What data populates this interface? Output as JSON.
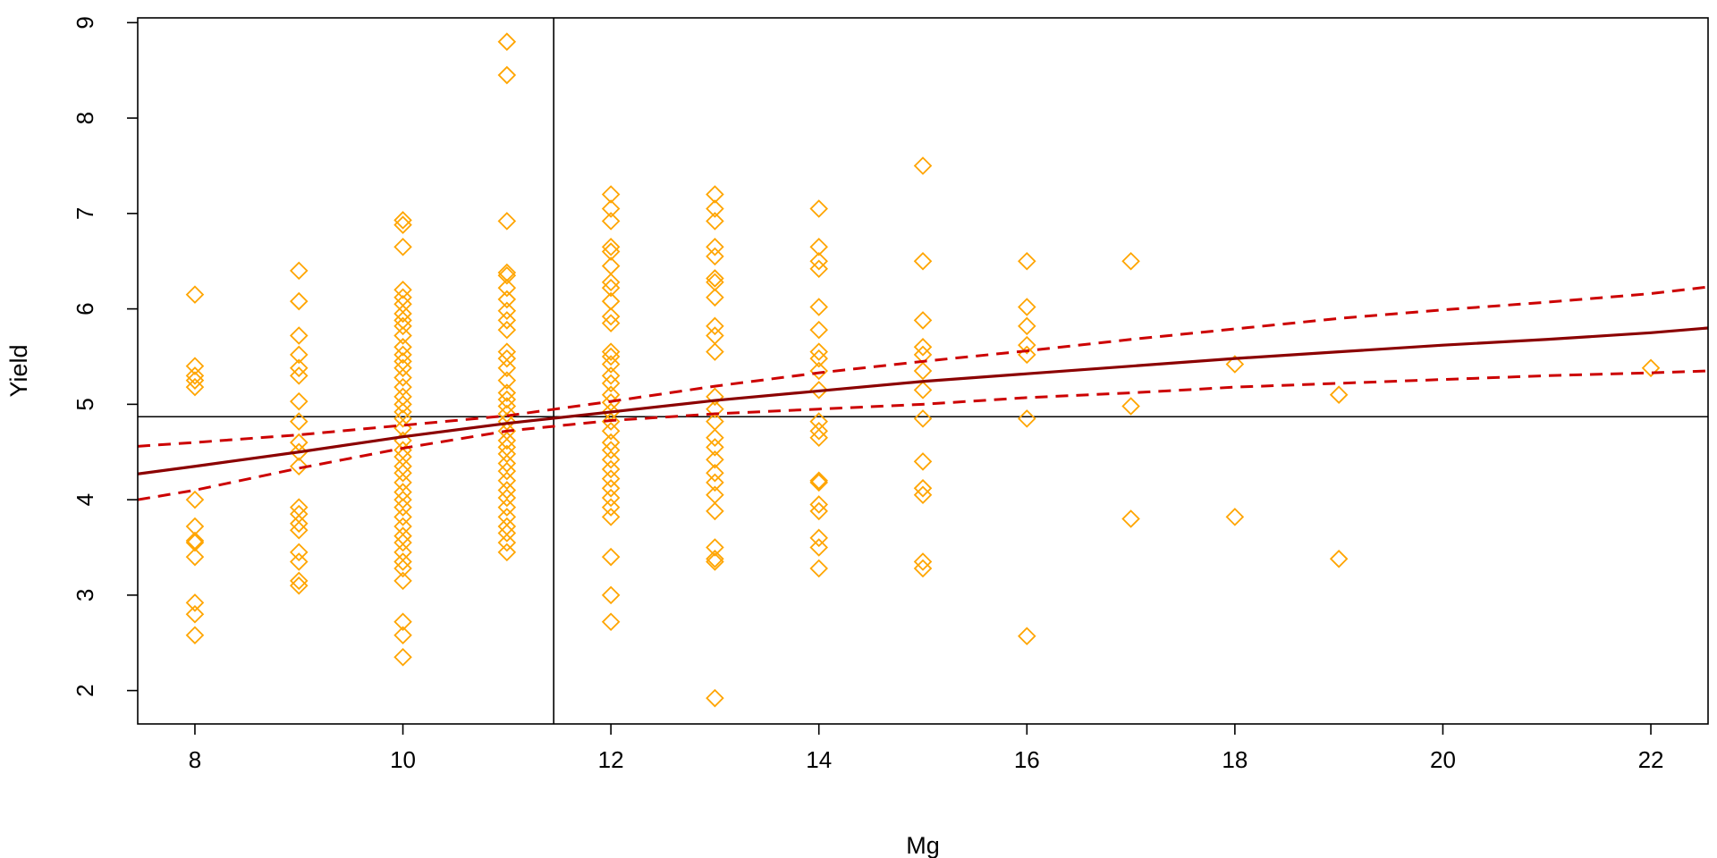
{
  "chart_data": {
    "type": "scatter",
    "title": "",
    "xlabel": "Mg",
    "ylabel": "Yield",
    "xlim": [
      7.45,
      22.55
    ],
    "ylim": [
      1.65,
      9.05
    ],
    "x_ticks": [
      8,
      10,
      12,
      14,
      16,
      18,
      20,
      22
    ],
    "y_ticks": [
      2,
      3,
      4,
      5,
      6,
      7,
      8,
      9
    ],
    "grid": false,
    "legend": "none",
    "reference_lines": {
      "vertical_x": 11.45,
      "horizontal_y": 4.87
    },
    "colors": {
      "points": "#FFA500",
      "fit": "#8B0000",
      "ci": "#CC0000",
      "reference": "#000000",
      "frame": "#000000"
    },
    "points": [
      [
        8,
        6.15
      ],
      [
        8,
        5.4
      ],
      [
        8,
        5.3
      ],
      [
        8,
        5.25
      ],
      [
        8,
        5.18
      ],
      [
        8,
        4.0
      ],
      [
        8,
        3.72
      ],
      [
        8,
        3.57
      ],
      [
        8,
        3.55
      ],
      [
        8,
        3.4
      ],
      [
        8,
        2.92
      ],
      [
        8,
        2.8
      ],
      [
        8,
        2.58
      ],
      [
        9,
        6.4
      ],
      [
        9,
        6.08
      ],
      [
        9,
        5.72
      ],
      [
        9,
        5.52
      ],
      [
        9,
        5.38
      ],
      [
        9,
        5.3
      ],
      [
        9,
        5.03
      ],
      [
        9,
        4.82
      ],
      [
        9,
        4.6
      ],
      [
        9,
        4.5
      ],
      [
        9,
        4.35
      ],
      [
        9,
        3.92
      ],
      [
        9,
        3.85
      ],
      [
        9,
        3.75
      ],
      [
        9,
        3.68
      ],
      [
        9,
        3.45
      ],
      [
        9,
        3.35
      ],
      [
        9,
        3.15
      ],
      [
        9,
        3.1
      ],
      [
        10,
        6.93
      ],
      [
        10,
        6.88
      ],
      [
        10,
        6.65
      ],
      [
        10,
        6.2
      ],
      [
        10,
        6.12
      ],
      [
        10,
        6.05
      ],
      [
        10,
        5.95
      ],
      [
        10,
        5.88
      ],
      [
        10,
        5.82
      ],
      [
        10,
        5.72
      ],
      [
        10,
        5.6
      ],
      [
        10,
        5.52
      ],
      [
        10,
        5.45
      ],
      [
        10,
        5.38
      ],
      [
        10,
        5.28
      ],
      [
        10,
        5.18
      ],
      [
        10,
        5.08
      ],
      [
        10,
        5.0
      ],
      [
        10,
        4.92
      ],
      [
        10,
        4.85
      ],
      [
        10,
        4.75
      ],
      [
        10,
        4.62
      ],
      [
        10,
        4.52
      ],
      [
        10,
        4.45
      ],
      [
        10,
        4.35
      ],
      [
        10,
        4.28
      ],
      [
        10,
        4.18
      ],
      [
        10,
        4.08
      ],
      [
        10,
        4.0
      ],
      [
        10,
        3.92
      ],
      [
        10,
        3.82
      ],
      [
        10,
        3.72
      ],
      [
        10,
        3.62
      ],
      [
        10,
        3.55
      ],
      [
        10,
        3.45
      ],
      [
        10,
        3.35
      ],
      [
        10,
        3.28
      ],
      [
        10,
        3.15
      ],
      [
        10,
        2.72
      ],
      [
        10,
        2.58
      ],
      [
        10,
        2.35
      ],
      [
        11,
        8.8
      ],
      [
        11,
        8.45
      ],
      [
        11,
        6.92
      ],
      [
        11,
        6.38
      ],
      [
        11,
        6.35
      ],
      [
        11,
        6.22
      ],
      [
        11,
        6.1
      ],
      [
        11,
        5.98
      ],
      [
        11,
        5.88
      ],
      [
        11,
        5.78
      ],
      [
        11,
        5.55
      ],
      [
        11,
        5.48
      ],
      [
        11,
        5.38
      ],
      [
        11,
        5.25
      ],
      [
        11,
        5.12
      ],
      [
        11,
        5.05
      ],
      [
        11,
        4.98
      ],
      [
        11,
        4.9
      ],
      [
        11,
        4.82
      ],
      [
        11,
        4.72
      ],
      [
        11,
        4.62
      ],
      [
        11,
        4.55
      ],
      [
        11,
        4.48
      ],
      [
        11,
        4.38
      ],
      [
        11,
        4.3
      ],
      [
        11,
        4.2
      ],
      [
        11,
        4.1
      ],
      [
        11,
        4.02
      ],
      [
        11,
        3.92
      ],
      [
        11,
        3.82
      ],
      [
        11,
        3.72
      ],
      [
        11,
        3.65
      ],
      [
        11,
        3.55
      ],
      [
        11,
        3.45
      ],
      [
        12,
        7.2
      ],
      [
        12,
        7.05
      ],
      [
        12,
        6.92
      ],
      [
        12,
        6.65
      ],
      [
        12,
        6.6
      ],
      [
        12,
        6.45
      ],
      [
        12,
        6.28
      ],
      [
        12,
        6.22
      ],
      [
        12,
        6.08
      ],
      [
        12,
        5.92
      ],
      [
        12,
        5.85
      ],
      [
        12,
        5.55
      ],
      [
        12,
        5.5
      ],
      [
        12,
        5.42
      ],
      [
        12,
        5.3
      ],
      [
        12,
        5.22
      ],
      [
        12,
        5.1
      ],
      [
        12,
        5.02
      ],
      [
        12,
        4.92
      ],
      [
        12,
        4.82
      ],
      [
        12,
        4.72
      ],
      [
        12,
        4.6
      ],
      [
        12,
        4.52
      ],
      [
        12,
        4.42
      ],
      [
        12,
        4.32
      ],
      [
        12,
        4.22
      ],
      [
        12,
        4.12
      ],
      [
        12,
        4.02
      ],
      [
        12,
        3.92
      ],
      [
        12,
        3.82
      ],
      [
        12,
        3.4
      ],
      [
        12,
        3.0
      ],
      [
        12,
        2.72
      ],
      [
        13,
        7.2
      ],
      [
        13,
        7.05
      ],
      [
        13,
        6.92
      ],
      [
        13,
        6.65
      ],
      [
        13,
        6.55
      ],
      [
        13,
        6.32
      ],
      [
        13,
        6.28
      ],
      [
        13,
        6.12
      ],
      [
        13,
        5.82
      ],
      [
        13,
        5.72
      ],
      [
        13,
        5.55
      ],
      [
        13,
        5.08
      ],
      [
        13,
        4.95
      ],
      [
        13,
        4.82
      ],
      [
        13,
        4.65
      ],
      [
        13,
        4.55
      ],
      [
        13,
        4.42
      ],
      [
        13,
        4.28
      ],
      [
        13,
        4.18
      ],
      [
        13,
        4.05
      ],
      [
        13,
        3.88
      ],
      [
        13,
        3.5
      ],
      [
        13,
        3.38
      ],
      [
        13,
        3.35
      ],
      [
        13,
        1.92
      ],
      [
        14,
        7.05
      ],
      [
        14,
        6.65
      ],
      [
        14,
        6.5
      ],
      [
        14,
        6.42
      ],
      [
        14,
        6.02
      ],
      [
        14,
        5.78
      ],
      [
        14,
        5.55
      ],
      [
        14,
        5.48
      ],
      [
        14,
        5.35
      ],
      [
        14,
        5.15
      ],
      [
        14,
        4.82
      ],
      [
        14,
        4.72
      ],
      [
        14,
        4.65
      ],
      [
        14,
        4.2
      ],
      [
        14,
        4.18
      ],
      [
        14,
        3.95
      ],
      [
        14,
        3.88
      ],
      [
        14,
        3.6
      ],
      [
        14,
        3.5
      ],
      [
        14,
        3.28
      ],
      [
        15,
        7.5
      ],
      [
        15,
        6.5
      ],
      [
        15,
        5.88
      ],
      [
        15,
        5.6
      ],
      [
        15,
        5.52
      ],
      [
        15,
        5.35
      ],
      [
        15,
        5.15
      ],
      [
        15,
        4.85
      ],
      [
        15,
        4.4
      ],
      [
        15,
        4.12
      ],
      [
        15,
        4.05
      ],
      [
        15,
        3.35
      ],
      [
        15,
        3.28
      ],
      [
        16,
        6.5
      ],
      [
        16,
        6.02
      ],
      [
        16,
        5.82
      ],
      [
        16,
        5.62
      ],
      [
        16,
        5.52
      ],
      [
        16,
        4.85
      ],
      [
        16,
        2.57
      ],
      [
        17,
        6.5
      ],
      [
        17,
        4.98
      ],
      [
        17,
        3.8
      ],
      [
        18,
        5.42
      ],
      [
        18,
        3.82
      ],
      [
        19,
        5.1
      ],
      [
        19,
        3.38
      ],
      [
        22,
        5.38
      ]
    ],
    "series": [
      {
        "style": "solid",
        "x": [
          7.45,
          8,
          9,
          10,
          11,
          12,
          13,
          14,
          15,
          16,
          17,
          18,
          19,
          20,
          21,
          22,
          22.55
        ],
        "y": [
          4.27,
          4.35,
          4.5,
          4.66,
          4.8,
          4.92,
          5.04,
          5.14,
          5.24,
          5.32,
          5.4,
          5.48,
          5.55,
          5.62,
          5.68,
          5.75,
          5.8
        ]
      },
      {
        "style": "dashed",
        "x": [
          7.45,
          8,
          9,
          10,
          11,
          12,
          13,
          14,
          15,
          16,
          17,
          18,
          19,
          20,
          21,
          22,
          22.55
        ],
        "y": [
          4.56,
          4.6,
          4.68,
          4.78,
          4.88,
          5.03,
          5.19,
          5.33,
          5.45,
          5.56,
          5.68,
          5.79,
          5.9,
          5.99,
          6.07,
          6.16,
          6.23
        ]
      },
      {
        "style": "dashed",
        "x": [
          7.45,
          8,
          9,
          10,
          11,
          12,
          13,
          14,
          15,
          16,
          17,
          18,
          19,
          20,
          21,
          22,
          22.55
        ],
        "y": [
          4.0,
          4.1,
          4.33,
          4.54,
          4.72,
          4.83,
          4.9,
          4.95,
          5.0,
          5.07,
          5.12,
          5.18,
          5.22,
          5.26,
          5.3,
          5.33,
          5.35
        ]
      }
    ]
  }
}
